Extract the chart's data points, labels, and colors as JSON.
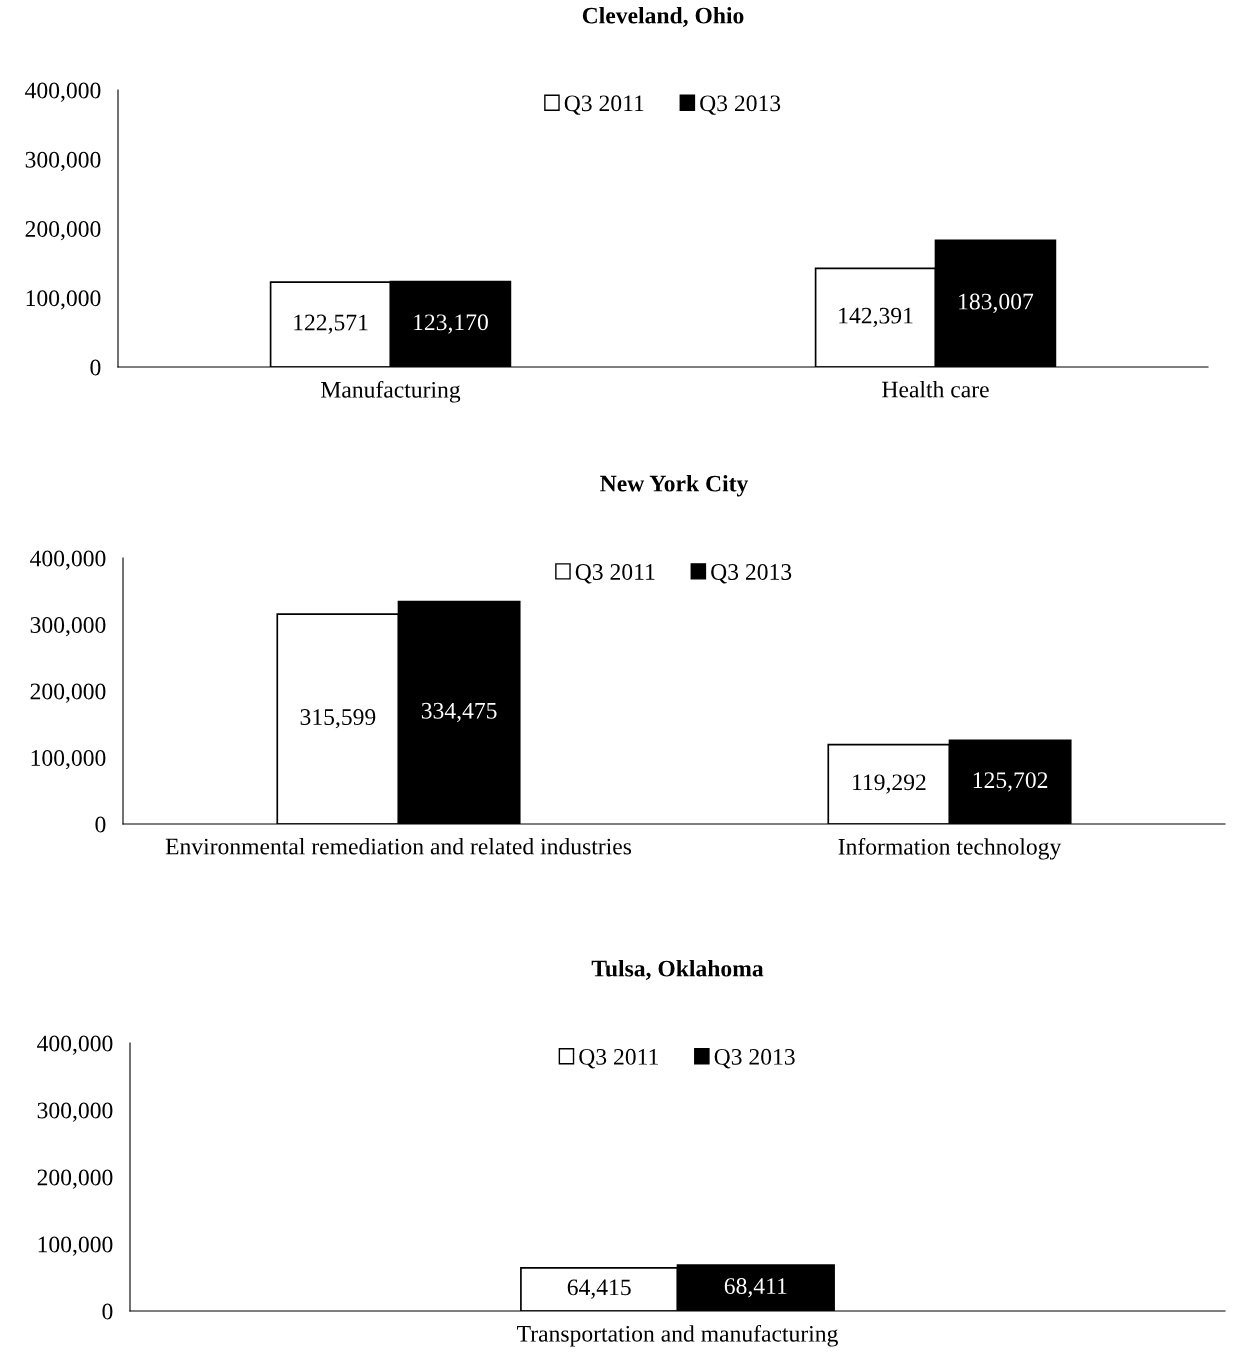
{
  "chart_data": [
    {
      "type": "bar",
      "title": "Cleveland, Ohio",
      "categories": [
        "Manufacturing",
        "Health care"
      ],
      "series": [
        {
          "name": "Q3 2011",
          "color": "#ffffff",
          "values": [
            122571,
            142391
          ],
          "value_labels": [
            "122,571",
            "142,391"
          ]
        },
        {
          "name": "Q3 2013",
          "color": "#000000",
          "values": [
            123170,
            183007
          ],
          "value_labels": [
            "123,170",
            "183,007"
          ]
        }
      ],
      "ylim": [
        0,
        400000
      ],
      "yticks": [
        0,
        {
          "value": 100000,
          "label": "100,000"
        },
        {
          "value": 200000,
          "label": "200,000"
        },
        {
          "value": 300000,
          "label": "300,000"
        },
        {
          "value": 400000,
          "label": "400,000"
        }
      ],
      "legend": "top",
      "grid": false
    },
    {
      "type": "bar",
      "title": "New York City",
      "categories": [
        "Environmental remediation and related industries",
        "Information technology"
      ],
      "series": [
        {
          "name": "Q3 2011",
          "color": "#ffffff",
          "values": [
            315599,
            119292
          ],
          "value_labels": [
            "315,599",
            "119,292"
          ]
        },
        {
          "name": "Q3 2013",
          "color": "#000000",
          "values": [
            334475,
            125702
          ],
          "value_labels": [
            "334,475",
            "125,702"
          ]
        }
      ],
      "ylim": [
        0,
        400000
      ],
      "yticks": [
        0,
        {
          "value": 100000,
          "label": "100,000"
        },
        {
          "value": 200000,
          "label": "200,000"
        },
        {
          "value": 300000,
          "label": "300,000"
        },
        {
          "value": 400000,
          "label": "400,000"
        }
      ],
      "legend": "top",
      "grid": false
    },
    {
      "type": "bar",
      "title": "Tulsa, Oklahoma",
      "categories": [
        "Transportation and manufacturing"
      ],
      "series": [
        {
          "name": "Q3 2011",
          "color": "#ffffff",
          "values": [
            64415
          ],
          "value_labels": [
            "64,415"
          ]
        },
        {
          "name": "Q3 2013",
          "color": "#000000",
          "values": [
            68411
          ],
          "value_labels": [
            "68,411"
          ]
        }
      ],
      "ylim": [
        0,
        400000
      ],
      "yticks": [
        0,
        {
          "value": 100000,
          "label": "100,000"
        },
        {
          "value": 200000,
          "label": "200,000"
        },
        {
          "value": 300000,
          "label": "300,000"
        },
        {
          "value": 400000,
          "label": "400,000"
        }
      ],
      "legend": "top",
      "grid": false
    }
  ]
}
